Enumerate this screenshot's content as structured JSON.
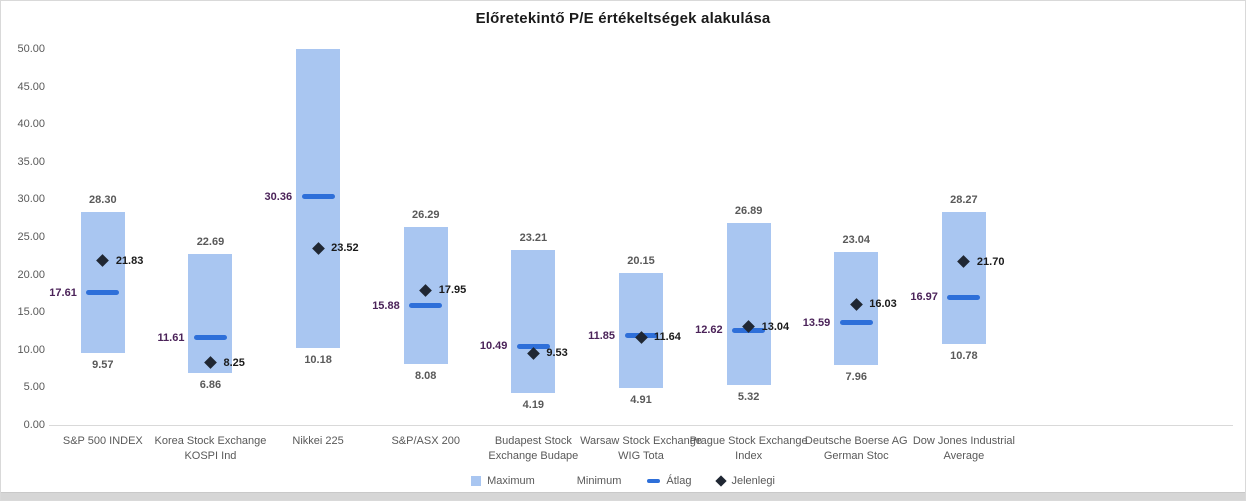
{
  "chart_data": {
    "type": "range-bar",
    "title": "Előretekintő P/E értékeltségek alakulása",
    "xlabel": "",
    "ylabel": "",
    "ylim": [
      0,
      50
    ],
    "ytick_step": 5,
    "yticks": [
      "0.00",
      "5.00",
      "10.00",
      "15.00",
      "20.00",
      "25.00",
      "30.00",
      "35.00",
      "40.00",
      "45.00",
      "50.00"
    ],
    "gridlines": false,
    "legend_position": "bottom",
    "marker_meaning": {
      "bar": "Maximum–Minimum range",
      "dash": "Átlag (average)",
      "diamond": "Jelenlegi (current)"
    },
    "categories": [
      {
        "name": "S&P 500 INDEX",
        "max": 28.3,
        "min": 9.57,
        "avg": 17.61,
        "current": 21.83,
        "max_label": "28.30",
        "min_label": "9.57",
        "avg_label": "17.61",
        "current_label": "21.83"
      },
      {
        "name": "Korea Stock Exchange KOSPI Ind",
        "max": 22.69,
        "min": 6.86,
        "avg": 11.61,
        "current": 8.25,
        "max_label": "22.69",
        "min_label": "6.86",
        "avg_label": "11.61",
        "current_label": "8.25"
      },
      {
        "name": "Nikkei 225",
        "max": 50.0,
        "min": 10.18,
        "avg": 30.36,
        "current": 23.52,
        "max_label": "",
        "min_label": "10.18",
        "avg_label": "30.36",
        "current_label": "23.52"
      },
      {
        "name": "S&P/ASX 200",
        "max": 26.29,
        "min": 8.08,
        "avg": 15.88,
        "current": 17.95,
        "max_label": "26.29",
        "min_label": "8.08",
        "avg_label": "15.88",
        "current_label": "17.95"
      },
      {
        "name": "Budapest Stock Exchange Budape",
        "max": 23.21,
        "min": 4.19,
        "avg": 10.49,
        "current": 9.53,
        "max_label": "23.21",
        "min_label": "4.19",
        "avg_label": "10.49",
        "current_label": "9.53"
      },
      {
        "name": "Warsaw Stock Exchange WIG Tota",
        "max": 20.15,
        "min": 4.91,
        "avg": 11.85,
        "current": 11.64,
        "max_label": "20.15",
        "min_label": "4.91",
        "avg_label": "11.85",
        "current_label": "11.64"
      },
      {
        "name": "Prague Stock Exchange Index",
        "max": 26.89,
        "min": 5.32,
        "avg": 12.62,
        "current": 13.04,
        "max_label": "26.89",
        "min_label": "5.32",
        "avg_label": "12.62",
        "current_label": "13.04"
      },
      {
        "name": "Deutsche Boerse AG German Stoc",
        "max": 23.04,
        "min": 7.96,
        "avg": 13.59,
        "current": 16.03,
        "max_label": "23.04",
        "min_label": "7.96",
        "avg_label": "13.59",
        "current_label": "16.03"
      },
      {
        "name": "Dow Jones Industrial Average",
        "max": 28.27,
        "min": 10.78,
        "avg": 16.97,
        "current": 21.7,
        "max_label": "28.27",
        "min_label": "10.78",
        "avg_label": "16.97",
        "current_label": "21.70"
      }
    ],
    "legend": [
      {
        "label": "Maximum",
        "marker": "square",
        "color": "#A9C6F1"
      },
      {
        "label": "Minimum",
        "marker": "none",
        "color": "#FFFFFF"
      },
      {
        "label": "Átlag",
        "marker": "dash",
        "color": "#2E6FD9"
      },
      {
        "label": "Jelenlegi",
        "marker": "diamond",
        "color": "#202733"
      }
    ]
  },
  "colors": {
    "bar": "#A9C6F1",
    "avg_dash": "#2E6FD9",
    "diamond": "#202733",
    "minmax_label": "#595959",
    "avg_label": "#4B2359",
    "current_label": "#1A1A1A",
    "axis_text": "#595959",
    "axis_line": "#D9D9D9",
    "title": "#1A1A1A",
    "legend_text": "#595959",
    "panel_bg": "#FFFFFF",
    "frame": "#D9D9D9",
    "bottom_strip": "#D6D6D6"
  }
}
